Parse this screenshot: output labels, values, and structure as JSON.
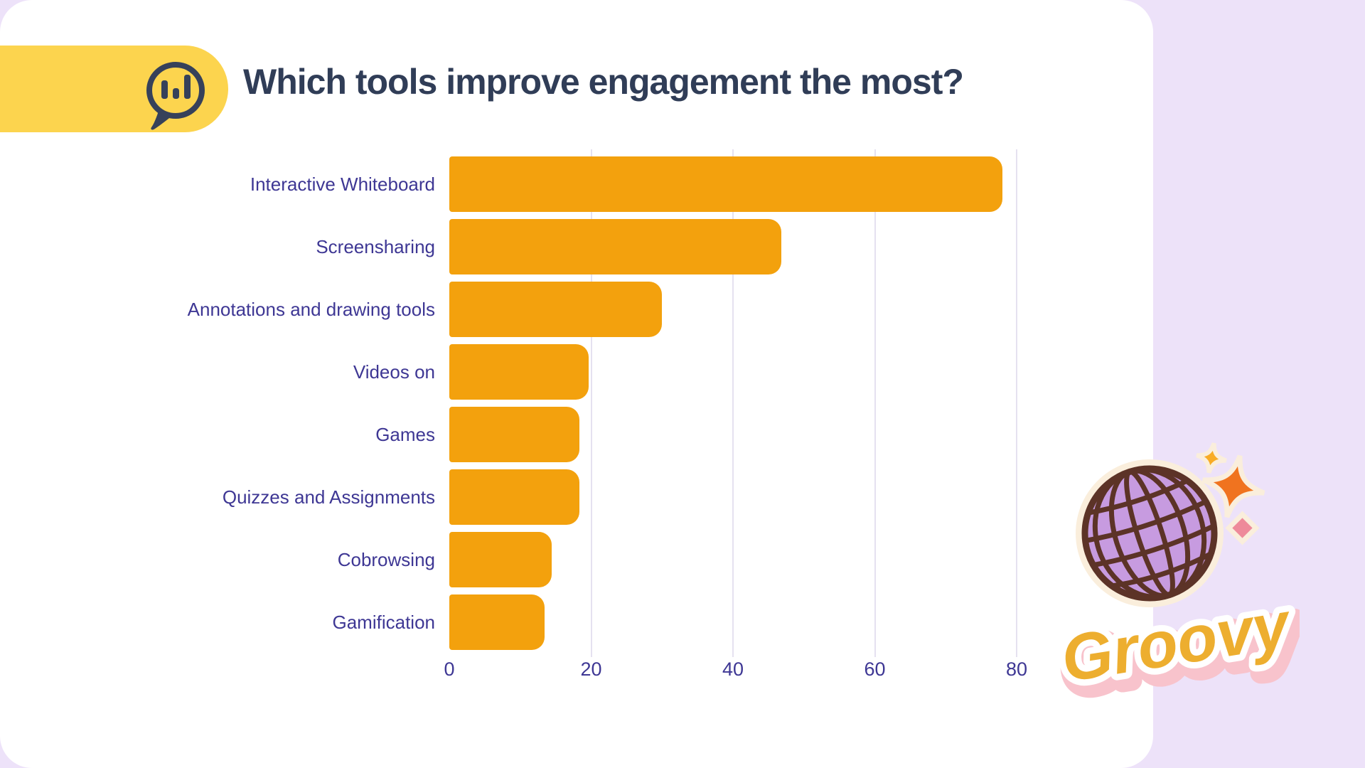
{
  "page": {
    "background_color": "#EDE2F9",
    "card_color": "#FFFFFF"
  },
  "header": {
    "title": "Which tools improve engagement the most?",
    "title_color": "#303D57",
    "pill_color": "#FCD44E",
    "icon": "chat-bubble-bar-chart-icon",
    "icon_color": "#36415A"
  },
  "chart_data": {
    "type": "bar",
    "orientation": "horizontal",
    "title": "Which tools improve engagement the most?",
    "categories": [
      "Interactive Whiteboard",
      "Screensharing",
      "Annotations and drawing tools",
      "Videos on",
      "Games",
      "Quizzes and Assignments",
      "Cobrowsing",
      "Gamification"
    ],
    "values": [
      78,
      46.8,
      30,
      19.6,
      18.3,
      18.3,
      14.4,
      13.4
    ],
    "x_ticks": [
      "0",
      "20",
      "40",
      "60",
      "80"
    ],
    "xlim": [
      0,
      80
    ],
    "xlabel": "",
    "ylabel": "",
    "grid": true,
    "legend": false,
    "bar_color": "#F3A10D",
    "label_color": "#3E3794",
    "gridline_color": "#E5E1F0"
  },
  "sticker": {
    "text": "Groovy",
    "icon": "disco-ball-icon",
    "text_color": "#EDAE2F",
    "shadow_color": "#F8C3CC",
    "outline_color": "#FAEEDC"
  }
}
